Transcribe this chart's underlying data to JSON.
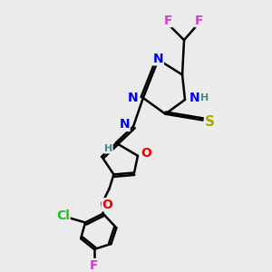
{
  "background_color": "#ebebeb",
  "atom_colors": {
    "F": "#cc44cc",
    "N": "#0000ee",
    "O": "#ee0000",
    "S": "#aaaa00",
    "Cl": "#22bb22",
    "H": "#448888",
    "C": "#000000"
  },
  "bond_color": "#000000",
  "bond_width": 1.8,
  "font_size": 10,
  "figsize": [
    3.0,
    3.0
  ],
  "dpi": 100
}
